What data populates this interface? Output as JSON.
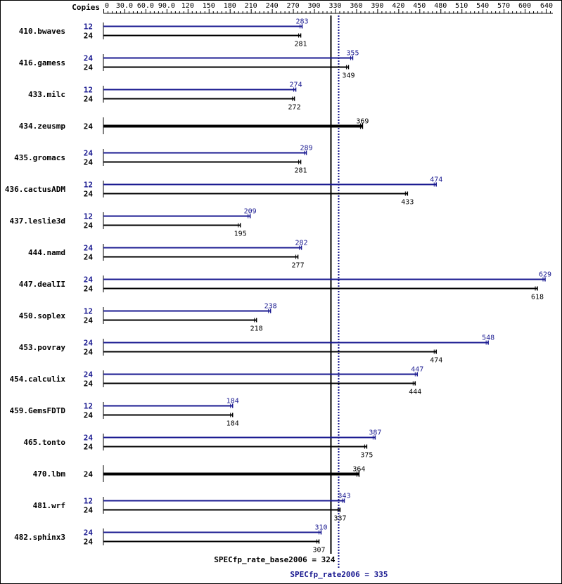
{
  "chart_data": {
    "type": "bar",
    "header": "Copies",
    "x_ticks": [
      "0",
      "30.0",
      "60.0",
      "90.0",
      "120",
      "150",
      "180",
      "210",
      "240",
      "270",
      "300",
      "330",
      "360",
      "390",
      "420",
      "450",
      "480",
      "510",
      "540",
      "570",
      "600",
      "640"
    ],
    "xlim": [
      0,
      640
    ],
    "colors": {
      "peak": "#191990",
      "base": "#000000"
    },
    "benchmarks": [
      {
        "name": "410.bwaves",
        "peak": {
          "copies": "12",
          "value": 283,
          "label": "283"
        },
        "base": {
          "copies": "24",
          "value": 281,
          "label": "281"
        }
      },
      {
        "name": "416.gamess",
        "peak": {
          "copies": "24",
          "value": 355,
          "label": "355"
        },
        "base": {
          "copies": "24",
          "value": 349,
          "label": "349"
        }
      },
      {
        "name": "433.milc",
        "peak": {
          "copies": "12",
          "value": 274,
          "label": "274"
        },
        "base": {
          "copies": "24",
          "value": 272,
          "label": "272"
        }
      },
      {
        "name": "434.zeusmp",
        "single": {
          "copies": "24",
          "value": 369,
          "label": "369"
        }
      },
      {
        "name": "435.gromacs",
        "peak": {
          "copies": "24",
          "value": 289,
          "label": "289"
        },
        "base": {
          "copies": "24",
          "value": 281,
          "label": "281"
        }
      },
      {
        "name": "436.cactusADM",
        "peak": {
          "copies": "12",
          "value": 474,
          "label": "474"
        },
        "base": {
          "copies": "24",
          "value": 433,
          "label": "433"
        }
      },
      {
        "name": "437.leslie3d",
        "peak": {
          "copies": "12",
          "value": 209,
          "label": "209"
        },
        "base": {
          "copies": "24",
          "value": 195,
          "label": "195"
        }
      },
      {
        "name": "444.namd",
        "peak": {
          "copies": "24",
          "value": 282,
          "label": "282"
        },
        "base": {
          "copies": "24",
          "value": 277,
          "label": "277"
        }
      },
      {
        "name": "447.dealII",
        "peak": {
          "copies": "24",
          "value": 629,
          "label": "629"
        },
        "base": {
          "copies": "24",
          "value": 618,
          "label": "618"
        }
      },
      {
        "name": "450.soplex",
        "peak": {
          "copies": "12",
          "value": 238,
          "label": "238"
        },
        "base": {
          "copies": "24",
          "value": 218,
          "label": "218"
        }
      },
      {
        "name": "453.povray",
        "peak": {
          "copies": "24",
          "value": 548,
          "label": "548"
        },
        "base": {
          "copies": "24",
          "value": 474,
          "label": "474"
        }
      },
      {
        "name": "454.calculix",
        "peak": {
          "copies": "24",
          "value": 447,
          "label": "447"
        },
        "base": {
          "copies": "24",
          "value": 444,
          "label": "444"
        }
      },
      {
        "name": "459.GemsFDTD",
        "peak": {
          "copies": "12",
          "value": 184,
          "label": "184"
        },
        "base": {
          "copies": "24",
          "value": 184,
          "label": "184"
        }
      },
      {
        "name": "465.tonto",
        "peak": {
          "copies": "24",
          "value": 387,
          "label": "387"
        },
        "base": {
          "copies": "24",
          "value": 375,
          "label": "375"
        }
      },
      {
        "name": "470.lbm",
        "single": {
          "copies": "24",
          "value": 364,
          "label": "364"
        }
      },
      {
        "name": "481.wrf",
        "peak": {
          "copies": "12",
          "value": 343,
          "label": "343"
        },
        "base": {
          "copies": "24",
          "value": 337,
          "label": "337"
        }
      },
      {
        "name": "482.sphinx3",
        "peak": {
          "copies": "24",
          "value": 310,
          "label": "310"
        },
        "base": {
          "copies": "24",
          "value": 307,
          "label": "307"
        }
      }
    ],
    "summary": {
      "base": {
        "value": 324,
        "label": "SPECfp_rate_base2006 = 324"
      },
      "peak": {
        "value": 335,
        "label": "SPECfp_rate2006 = 335"
      }
    }
  }
}
